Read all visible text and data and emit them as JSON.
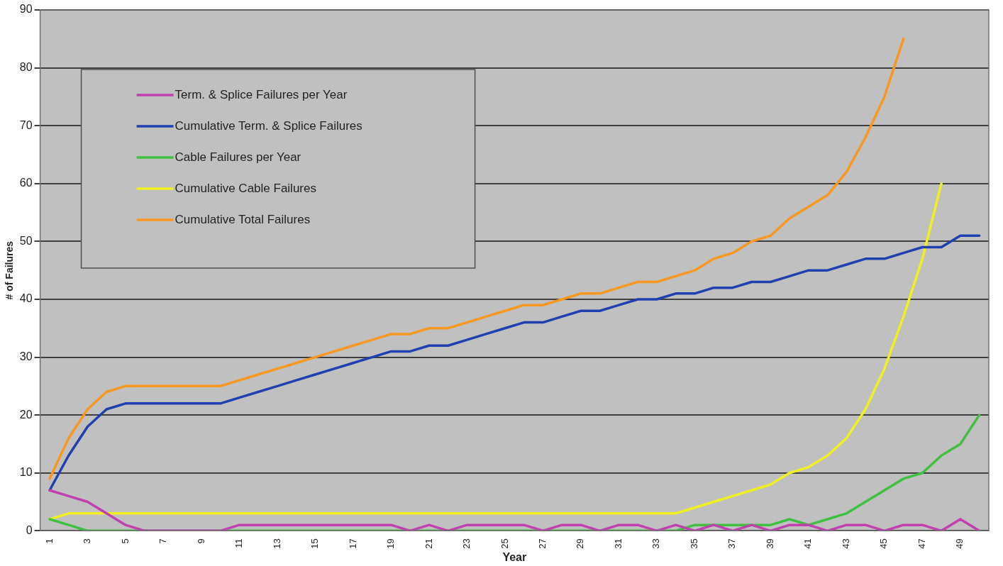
{
  "chart_data": {
    "type": "line",
    "xlabel": "Year",
    "ylabel": "# of Failures",
    "categories": [
      "1",
      null,
      "3",
      null,
      "5",
      null,
      "7",
      null,
      "9",
      null,
      "11",
      null,
      "13",
      null,
      "15",
      null,
      "17",
      null,
      "19",
      null,
      "21",
      null,
      "23",
      null,
      "25",
      null,
      "27",
      null,
      "29",
      null,
      "31",
      null,
      "33",
      null,
      "35",
      null,
      "37",
      null,
      "39",
      null,
      "41",
      null,
      "43",
      null,
      "45",
      null,
      "47",
      null,
      "49",
      null
    ],
    "ylim": [
      0,
      90
    ],
    "yticks": [
      0,
      10,
      20,
      30,
      40,
      50,
      60,
      70,
      80,
      90
    ],
    "grid": "y",
    "legend": "top left",
    "marker": "none",
    "line_style": "solid",
    "series": [
      {
        "name": "Term. & Splice Failures per Year",
        "color": "#c040b0",
        "values": [
          7,
          6,
          5,
          3,
          1,
          0,
          0,
          0,
          0,
          0,
          1,
          1,
          1,
          1,
          1,
          1,
          1,
          1,
          1,
          0,
          1,
          0,
          1,
          1,
          1,
          1,
          0,
          1,
          1,
          0,
          1,
          1,
          0,
          1,
          0,
          1,
          0,
          1,
          0,
          1,
          1,
          0,
          1,
          1,
          0,
          1,
          1,
          0,
          2,
          0
        ]
      },
      {
        "name": "Cumulative Term. & Splice Failures",
        "color": "#2040b0",
        "values": [
          7,
          13,
          18,
          21,
          22,
          22,
          22,
          22,
          22,
          22,
          23,
          24,
          25,
          26,
          27,
          28,
          29,
          30,
          31,
          31,
          32,
          32,
          33,
          34,
          35,
          36,
          36,
          37,
          38,
          38,
          39,
          40,
          40,
          41,
          41,
          42,
          42,
          43,
          43,
          44,
          45,
          45,
          46,
          47,
          47,
          48,
          49,
          49,
          51,
          51
        ]
      },
      {
        "name": "Cable Failures per Year",
        "color": "#40c040",
        "values": [
          2,
          1,
          0,
          0,
          0,
          0,
          0,
          0,
          0,
          0,
          0,
          0,
          0,
          0,
          0,
          0,
          0,
          0,
          0,
          0,
          0,
          0,
          0,
          0,
          0,
          0,
          0,
          0,
          0,
          0,
          0,
          0,
          0,
          0,
          1,
          1,
          1,
          1,
          1,
          2,
          1,
          2,
          3,
          5,
          7,
          9,
          10,
          13,
          15,
          20
        ]
      },
      {
        "name": "Cumulative Cable Failures",
        "color": "#f0f020",
        "values": [
          2,
          3,
          3,
          3,
          3,
          3,
          3,
          3,
          3,
          3,
          3,
          3,
          3,
          3,
          3,
          3,
          3,
          3,
          3,
          3,
          3,
          3,
          3,
          3,
          3,
          3,
          3,
          3,
          3,
          3,
          3,
          3,
          3,
          3,
          4,
          5,
          6,
          7,
          8,
          10,
          11,
          13,
          16,
          21,
          28,
          37,
          47,
          60,
          null,
          null
        ]
      },
      {
        "name": "Cumulative Total Failures",
        "color": "#f89820",
        "values": [
          9,
          16,
          21,
          24,
          25,
          25,
          25,
          25,
          25,
          25,
          26,
          27,
          28,
          29,
          30,
          31,
          32,
          33,
          34,
          34,
          35,
          35,
          36,
          37,
          38,
          39,
          39,
          40,
          41,
          41,
          42,
          43,
          43,
          44,
          45,
          47,
          48,
          50,
          51,
          54,
          56,
          58,
          62,
          68,
          75,
          85,
          null,
          null,
          null,
          null
        ]
      }
    ]
  }
}
